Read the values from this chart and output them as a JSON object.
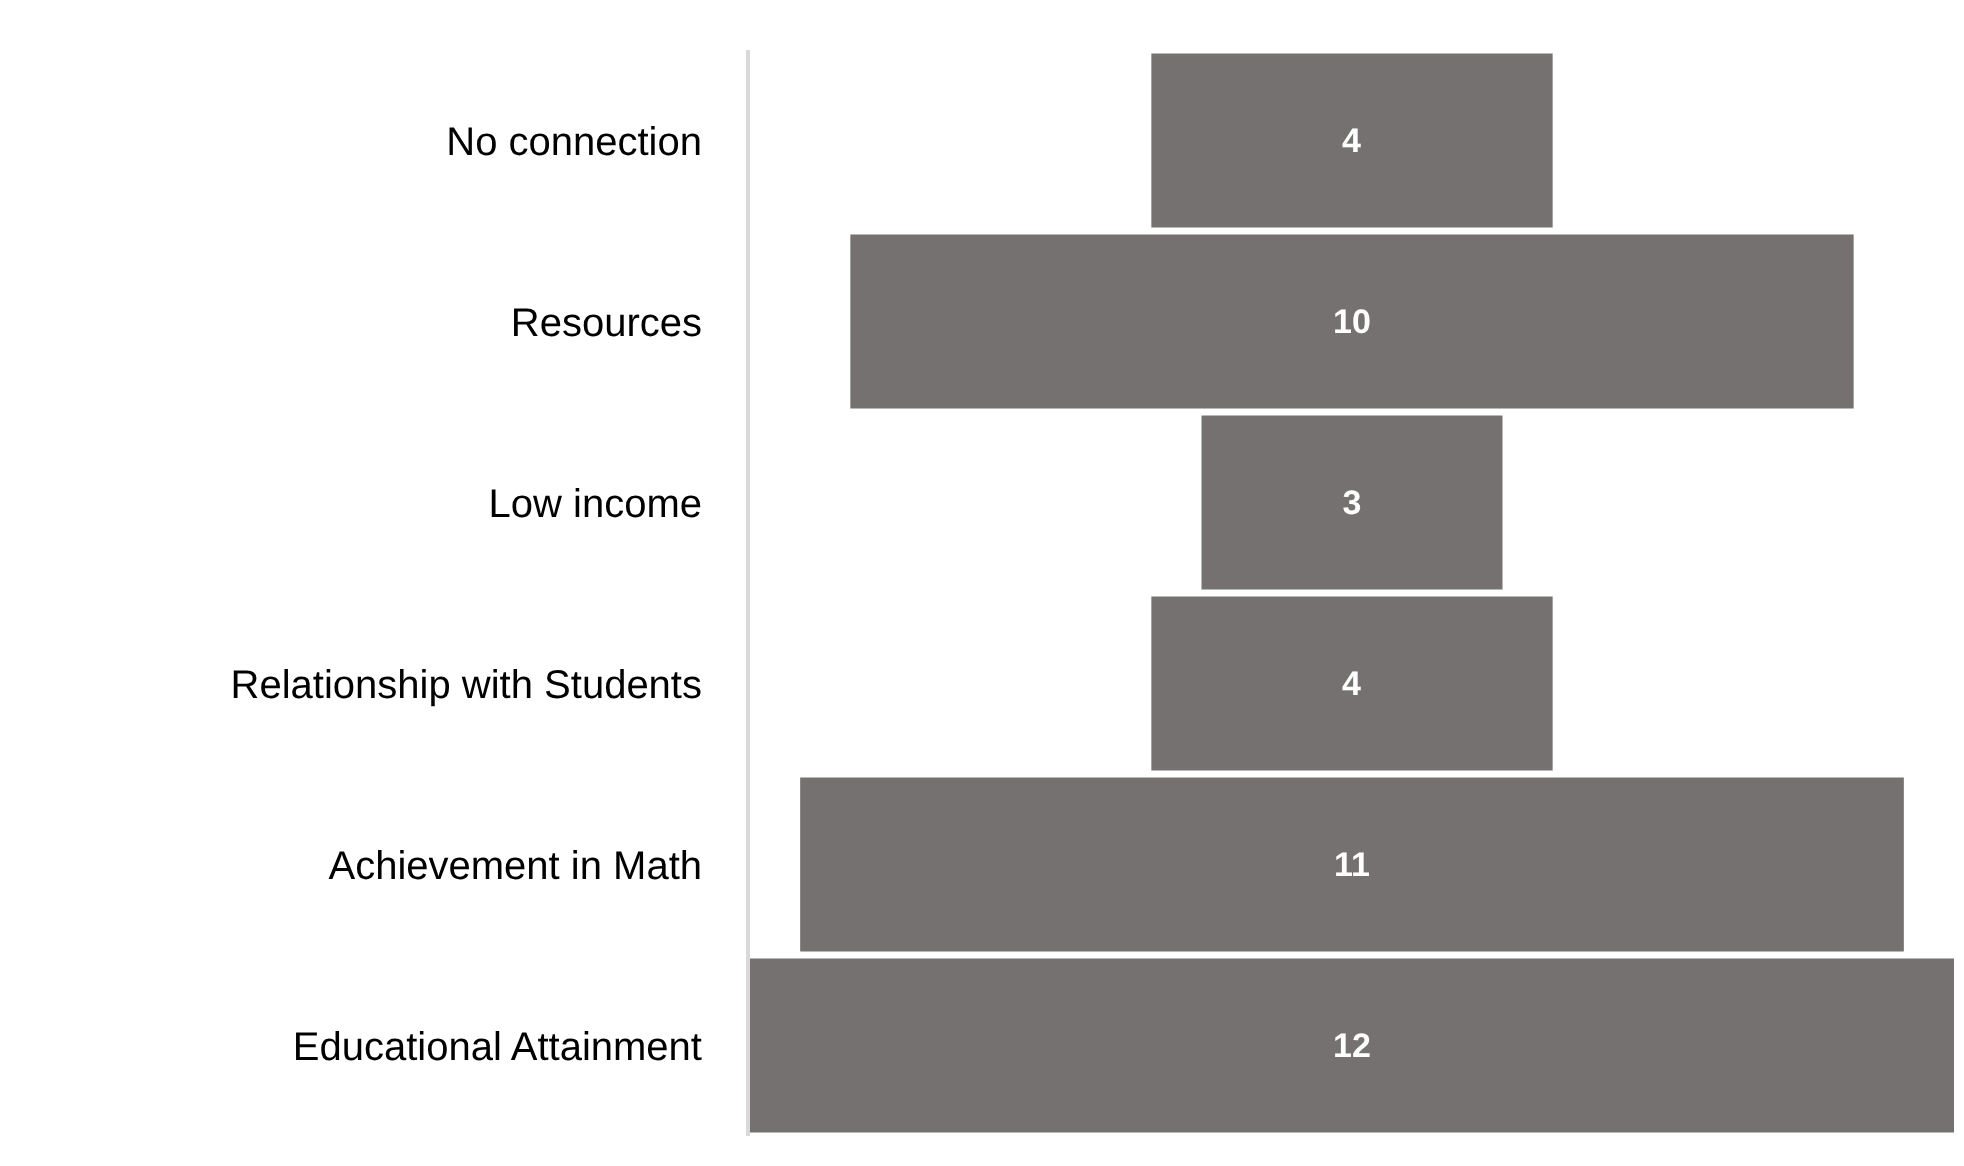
{
  "chart_data": {
    "type": "other",
    "categories": [
      "No connection",
      "Resources",
      "Low income",
      "Relationship with Students",
      "Achievement in Math",
      "Educational Attainment"
    ],
    "values": [
      4,
      10,
      3,
      4,
      11,
      12
    ],
    "color": "#767171",
    "data_labels": true
  }
}
